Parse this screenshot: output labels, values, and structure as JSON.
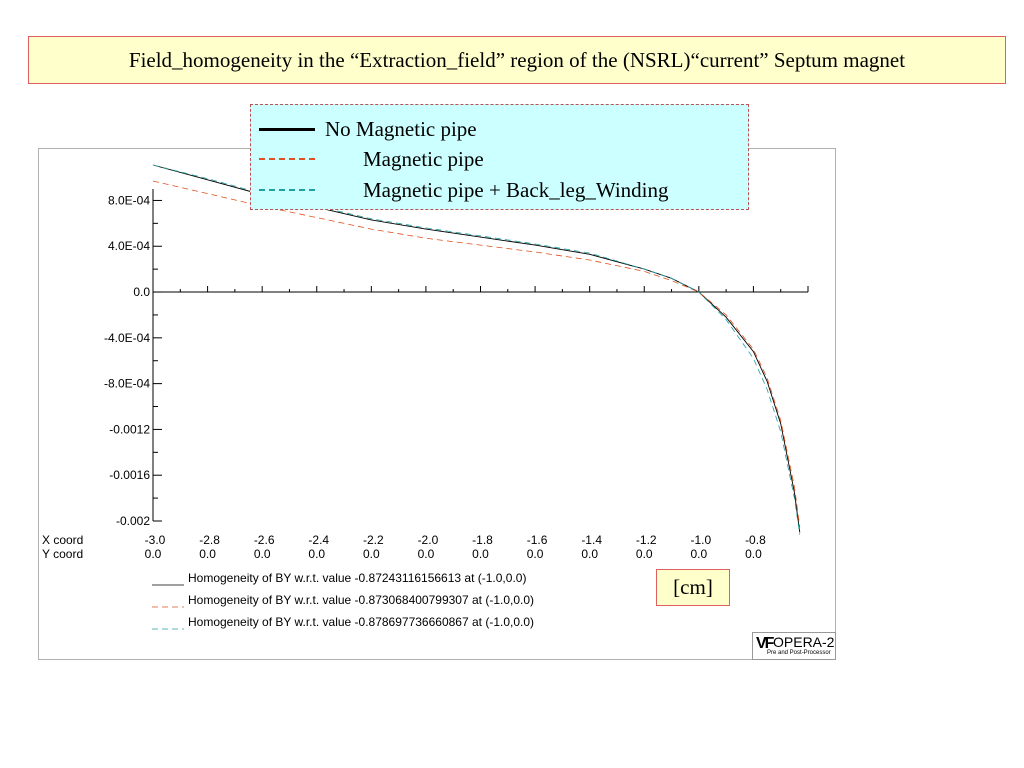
{
  "title": "Field_homogeneity in the “Extraction_field” region of the (NSRL)“current” Septum magnet",
  "legend": [
    {
      "label": "No Magnetic pipe",
      "color": "#000000",
      "dash": "solid"
    },
    {
      "label": "Magnetic pipe",
      "color": "#e05020",
      "dash": "dashed"
    },
    {
      "label": "Magnetic pipe + Back_leg_Winding",
      "color": "#20a0a0",
      "dash": "dashed"
    }
  ],
  "unit_label": "[cm]",
  "logo": {
    "name": "OPERA-2",
    "subtitle": "Pre and Post-Processor"
  },
  "chart_data": {
    "type": "line",
    "title": "",
    "xlabel": "",
    "ylabel": "",
    "xlim": [
      -3.0,
      -0.6
    ],
    "ylim": [
      -0.002,
      0.0009
    ],
    "row_labels": [
      "X coord",
      "Y coord"
    ],
    "x_ticks": [
      "-3.0",
      "-2.8",
      "-2.6",
      "-2.4",
      "-2.2",
      "-2.0",
      "-1.8",
      "-1.6",
      "-1.4",
      "-1.2",
      "-1.0",
      "-0.8"
    ],
    "y_coord_ticks": [
      "0.0",
      "0.0",
      "0.0",
      "0.0",
      "0.0",
      "0.0",
      "0.0",
      "0.0",
      "0.0",
      "0.0",
      "0.0",
      "0.0"
    ],
    "y_tick_labels": [
      {
        "value": 0.0008,
        "label": "8.0E-04"
      },
      {
        "value": 0.0004,
        "label": "4.0E-04"
      },
      {
        "value": 0.0,
        "label": "0.0"
      },
      {
        "value": -0.0004,
        "label": "-4.0E-04"
      },
      {
        "value": -0.0008,
        "label": "-8.0E-04"
      },
      {
        "value": -0.0012,
        "label": "-0.0012"
      },
      {
        "value": -0.0016,
        "label": "-0.0016"
      },
      {
        "value": -0.002,
        "label": "-0.002"
      }
    ],
    "series": [
      {
        "name": "Homogeneity of BY w.r.t. value -0.87243116156613 at (-1.0,0.0)",
        "color": "#000000",
        "dash": "solid",
        "x": [
          -3.0,
          -2.8,
          -2.6,
          -2.4,
          -2.2,
          -2.0,
          -1.8,
          -1.6,
          -1.4,
          -1.2,
          -1.1,
          -1.0,
          -0.9,
          -0.8,
          -0.75,
          -0.7,
          -0.65,
          -0.63
        ],
        "y": [
          0.00111,
          0.00098,
          0.00085,
          0.00074,
          0.00063,
          0.00055,
          0.00048,
          0.00041,
          0.00033,
          0.0002,
          0.00012,
          0.0,
          -0.00022,
          -0.00052,
          -0.00078,
          -0.00115,
          -0.00175,
          -0.0021
        ]
      },
      {
        "name": "Homogeneity of BY w.r.t. value -0.873068400799307 at (-1.0,0.0)",
        "color": "#e05020",
        "dash": "dashed",
        "x": [
          -3.0,
          -2.8,
          -2.6,
          -2.4,
          -2.2,
          -2.0,
          -1.8,
          -1.6,
          -1.4,
          -1.2,
          -1.1,
          -1.0,
          -0.9,
          -0.8,
          -0.75,
          -0.7,
          -0.65,
          -0.63
        ],
        "y": [
          0.00097,
          0.00086,
          0.00075,
          0.00065,
          0.00055,
          0.00047,
          0.00041,
          0.00035,
          0.00028,
          0.00018,
          0.0001,
          0.0,
          -0.0002,
          -0.0005,
          -0.00075,
          -0.00112,
          -0.0017,
          -0.00205
        ]
      },
      {
        "name": "Homogeneity of BY w.r.t. value -0.878697736660867 at (-1.0,0.0)",
        "color": "#20a0a0",
        "dash": "dashed",
        "x": [
          -3.0,
          -2.8,
          -2.6,
          -2.4,
          -2.2,
          -2.0,
          -1.8,
          -1.6,
          -1.4,
          -1.2,
          -1.1,
          -1.0,
          -0.9,
          -0.8,
          -0.75,
          -0.7,
          -0.65,
          -0.63
        ],
        "y": [
          0.00111,
          0.00099,
          0.00086,
          0.00075,
          0.00064,
          0.00056,
          0.00049,
          0.00042,
          0.00034,
          0.0002,
          0.00012,
          0.0,
          -0.00024,
          -0.00058,
          -0.00085,
          -0.00122,
          -0.0018,
          -0.00212
        ]
      }
    ]
  }
}
